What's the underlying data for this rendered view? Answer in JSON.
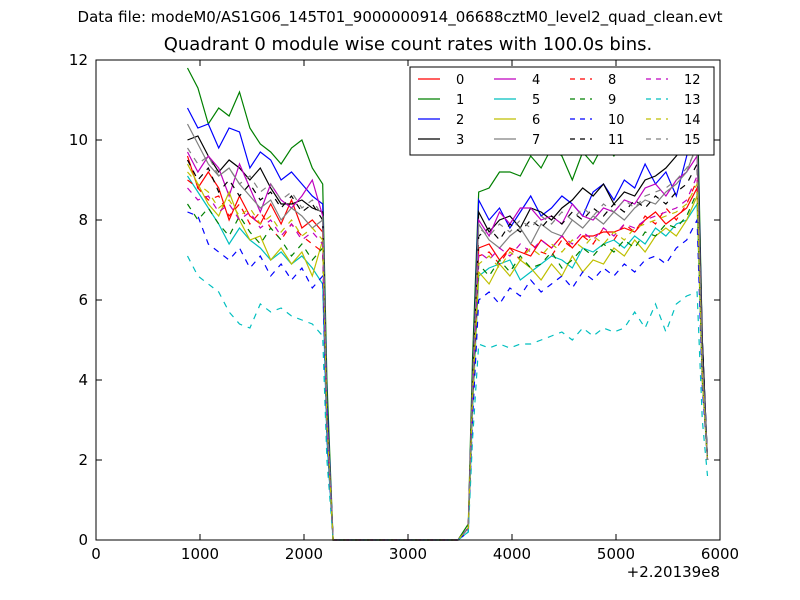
{
  "suptitle": "Data file: modeM0/AS1G06_145T01_9000000914_06688cztM0_level2_quad_clean.evt",
  "chart_data": {
    "type": "line",
    "title": "Quadrant 0 module wise count rates with 100.0s bins.",
    "xlabel": "",
    "ylabel": "",
    "xlim": [
      0,
      6000
    ],
    "ylim": [
      0,
      12
    ],
    "xticks": [
      0,
      1000,
      2000,
      3000,
      4000,
      5000,
      6000
    ],
    "yticks": [
      0,
      2,
      4,
      6,
      8,
      10,
      12
    ],
    "x_offset_label": "+2.20139e8",
    "grid": false,
    "legend_position": "top-right",
    "legend_columns": 4,
    "x": [
      880,
      980,
      1080,
      1180,
      1280,
      1380,
      1480,
      1580,
      1680,
      1780,
      1880,
      1980,
      2080,
      2180,
      2220,
      2280,
      2380,
      2480,
      2580,
      2680,
      2780,
      2880,
      2980,
      3080,
      3180,
      3280,
      3380,
      3480,
      3580,
      3620,
      3680,
      3780,
      3880,
      3980,
      4080,
      4180,
      4280,
      4380,
      4480,
      4580,
      4680,
      4780,
      4880,
      4980,
      5080,
      5180,
      5280,
      5380,
      5480,
      5580,
      5680,
      5780,
      5830,
      5880
    ],
    "series": [
      {
        "name": "0",
        "color": "#ff0000",
        "dash": "solid",
        "values": [
          9.6,
          8.8,
          9.2,
          8.8,
          8.0,
          8.6,
          8.1,
          7.9,
          8.4,
          7.9,
          8.5,
          7.8,
          8.0,
          7.7,
          3.0,
          0.0,
          0.0,
          0.0,
          0.0,
          0.0,
          0.0,
          0.0,
          0.0,
          0.0,
          0.0,
          0.0,
          0.0,
          0.0,
          0.3,
          3.5,
          7.3,
          7.4,
          7.0,
          7.3,
          7.2,
          7.1,
          7.5,
          7.3,
          7.6,
          7.3,
          7.6,
          7.6,
          7.7,
          7.7,
          7.8,
          7.7,
          8.0,
          8.2,
          7.9,
          8.1,
          8.3,
          8.8,
          4.0,
          2.0
        ]
      },
      {
        "name": "1",
        "color": "#008000",
        "dash": "solid",
        "values": [
          11.8,
          11.3,
          10.4,
          10.8,
          10.6,
          11.2,
          10.3,
          9.9,
          9.7,
          9.4,
          9.8,
          10.0,
          9.3,
          8.9,
          4.0,
          0.0,
          0.0,
          0.0,
          0.0,
          0.0,
          0.0,
          0.0,
          0.0,
          0.0,
          0.0,
          0.0,
          0.0,
          0.0,
          0.4,
          4.5,
          8.7,
          8.8,
          9.2,
          9.2,
          9.1,
          9.6,
          9.3,
          9.8,
          9.6,
          9.0,
          9.7,
          9.4,
          9.9,
          9.6,
          10.0,
          9.8,
          10.6,
          10.2,
          10.0,
          10.7,
          11.0,
          11.1,
          5.0,
          2.0
        ]
      },
      {
        "name": "2",
        "color": "#0000ff",
        "dash": "solid",
        "values": [
          10.8,
          10.3,
          10.4,
          9.8,
          10.3,
          10.2,
          9.3,
          9.7,
          9.5,
          9.0,
          9.2,
          8.9,
          8.6,
          8.4,
          3.5,
          0.0,
          0.0,
          0.0,
          0.0,
          0.0,
          0.0,
          0.0,
          0.0,
          0.0,
          0.0,
          0.0,
          0.0,
          0.0,
          0.3,
          4.0,
          8.5,
          8.0,
          8.3,
          7.8,
          8.2,
          8.6,
          8.1,
          8.3,
          8.6,
          8.4,
          8.1,
          8.7,
          8.9,
          8.5,
          9.0,
          8.8,
          9.4,
          8.9,
          9.2,
          8.6,
          9.6,
          10.4,
          5.0,
          2.0
        ]
      },
      {
        "name": "3",
        "color": "#000000",
        "dash": "solid",
        "values": [
          10.0,
          10.1,
          9.6,
          9.2,
          9.5,
          9.3,
          9.0,
          9.3,
          8.8,
          8.4,
          8.4,
          8.5,
          8.3,
          8.2,
          3.2,
          0.0,
          0.0,
          0.0,
          0.0,
          0.0,
          0.0,
          0.0,
          0.0,
          0.0,
          0.0,
          0.0,
          0.0,
          0.0,
          0.3,
          4.0,
          8.2,
          7.7,
          8.0,
          8.1,
          7.8,
          8.3,
          8.2,
          8.0,
          8.3,
          8.5,
          8.8,
          8.6,
          8.9,
          8.4,
          8.7,
          8.6,
          9.0,
          9.1,
          9.3,
          9.6,
          9.9,
          10.3,
          5.0,
          2.0
        ]
      },
      {
        "name": "4",
        "color": "#bf00bf",
        "dash": "solid",
        "values": [
          9.7,
          9.2,
          9.6,
          9.3,
          8.6,
          9.4,
          8.8,
          8.2,
          8.9,
          8.5,
          8.3,
          8.6,
          9.0,
          8.1,
          3.2,
          0.0,
          0.0,
          0.0,
          0.0,
          0.0,
          0.0,
          0.0,
          0.0,
          0.0,
          0.0,
          0.0,
          0.0,
          0.0,
          0.3,
          3.8,
          8.0,
          7.6,
          8.2,
          7.9,
          8.3,
          8.3,
          8.0,
          8.1,
          7.9,
          8.4,
          8.1,
          8.0,
          8.3,
          8.2,
          8.5,
          8.4,
          8.8,
          8.9,
          8.6,
          9.0,
          9.2,
          9.6,
          4.5,
          2.0
        ]
      },
      {
        "name": "5",
        "color": "#00bfbf",
        "dash": "solid",
        "values": [
          9.1,
          8.7,
          8.3,
          7.9,
          7.4,
          7.8,
          7.5,
          7.3,
          7.0,
          7.2,
          6.9,
          7.1,
          6.8,
          6.4,
          2.5,
          0.0,
          0.0,
          0.0,
          0.0,
          0.0,
          0.0,
          0.0,
          0.0,
          0.0,
          0.0,
          0.0,
          0.0,
          0.0,
          0.2,
          3.2,
          6.6,
          6.8,
          6.9,
          7.0,
          6.5,
          6.7,
          6.9,
          7.1,
          7.0,
          6.8,
          7.3,
          7.2,
          7.4,
          7.5,
          7.3,
          7.6,
          7.4,
          7.8,
          7.6,
          7.9,
          8.0,
          8.4,
          4.0,
          2.0
        ]
      },
      {
        "name": "6",
        "color": "#bfbf00",
        "dash": "solid",
        "values": [
          9.4,
          8.9,
          8.4,
          8.1,
          8.7,
          8.0,
          7.5,
          7.6,
          7.0,
          7.3,
          6.9,
          7.2,
          6.6,
          7.5,
          3.0,
          0.0,
          0.0,
          0.0,
          0.0,
          0.0,
          0.0,
          0.0,
          0.0,
          0.0,
          0.0,
          0.0,
          0.0,
          0.0,
          0.3,
          3.4,
          6.7,
          6.4,
          6.9,
          6.6,
          7.0,
          6.8,
          6.5,
          6.9,
          6.6,
          7.1,
          6.7,
          7.0,
          6.9,
          7.3,
          7.1,
          7.5,
          7.2,
          7.6,
          7.8,
          7.6,
          8.0,
          8.6,
          4.0,
          2.0
        ]
      },
      {
        "name": "7",
        "color": "#808080",
        "dash": "solid",
        "values": [
          10.4,
          9.9,
          9.4,
          9.1,
          9.3,
          8.9,
          8.6,
          8.3,
          8.5,
          8.0,
          8.3,
          8.1,
          7.8,
          8.0,
          3.1,
          0.0,
          0.0,
          0.0,
          0.0,
          0.0,
          0.0,
          0.0,
          0.0,
          0.0,
          0.0,
          0.0,
          0.0,
          0.0,
          0.3,
          3.9,
          7.9,
          7.5,
          7.3,
          7.6,
          7.8,
          7.4,
          7.9,
          7.7,
          7.6,
          8.0,
          7.8,
          8.1,
          7.9,
          8.2,
          8.0,
          8.3,
          8.5,
          8.4,
          8.7,
          8.9,
          9.2,
          9.9,
          4.5,
          2.0
        ]
      },
      {
        "name": "8",
        "color": "#ff0000",
        "dash": "dashed",
        "values": [
          9.0,
          8.8,
          8.5,
          8.6,
          8.1,
          8.4,
          7.9,
          8.2,
          7.8,
          7.5,
          7.9,
          7.6,
          7.4,
          7.2,
          2.8,
          0.0,
          0.0,
          0.0,
          0.0,
          0.0,
          0.0,
          0.0,
          0.0,
          0.0,
          0.0,
          0.0,
          0.0,
          0.0,
          0.3,
          3.5,
          7.1,
          7.2,
          6.9,
          7.3,
          7.0,
          7.4,
          7.2,
          7.1,
          7.5,
          7.3,
          7.6,
          7.4,
          7.8,
          7.5,
          7.9,
          7.7,
          8.1,
          7.9,
          8.3,
          8.0,
          8.4,
          9.0,
          4.0,
          2.0
        ]
      },
      {
        "name": "9",
        "color": "#008000",
        "dash": "dashed",
        "values": [
          8.4,
          8.0,
          8.3,
          7.9,
          7.6,
          8.1,
          7.7,
          7.4,
          7.8,
          7.5,
          7.1,
          7.4,
          7.0,
          7.3,
          2.8,
          0.0,
          0.0,
          0.0,
          0.0,
          0.0,
          0.0,
          0.0,
          0.0,
          0.0,
          0.0,
          0.0,
          0.0,
          0.0,
          0.3,
          3.3,
          6.9,
          6.6,
          7.0,
          6.7,
          7.1,
          6.8,
          6.9,
          7.2,
          6.8,
          7.0,
          7.3,
          7.1,
          7.4,
          7.2,
          7.5,
          7.3,
          7.7,
          7.6,
          7.9,
          7.8,
          8.1,
          8.7,
          4.0,
          2.0
        ]
      },
      {
        "name": "10",
        "color": "#0000ff",
        "dash": "dashed",
        "values": [
          8.2,
          8.1,
          7.4,
          7.2,
          7.0,
          7.3,
          6.8,
          7.1,
          6.6,
          6.9,
          6.5,
          6.8,
          6.3,
          6.6,
          2.6,
          0.0,
          0.0,
          0.0,
          0.0,
          0.0,
          0.0,
          0.0,
          0.0,
          0.0,
          0.0,
          0.0,
          0.0,
          0.0,
          0.2,
          3.0,
          6.0,
          6.2,
          5.9,
          6.3,
          6.1,
          6.5,
          6.2,
          6.4,
          6.6,
          6.3,
          6.7,
          6.5,
          6.8,
          6.6,
          6.9,
          6.7,
          7.0,
          7.1,
          6.9,
          7.3,
          7.5,
          8.0,
          3.8,
          2.0
        ]
      },
      {
        "name": "11",
        "color": "#000000",
        "dash": "dashed",
        "values": [
          9.5,
          9.0,
          9.3,
          8.7,
          9.0,
          8.6,
          8.9,
          8.5,
          8.7,
          8.3,
          8.6,
          8.2,
          8.4,
          8.0,
          3.1,
          0.0,
          0.0,
          0.0,
          0.0,
          0.0,
          0.0,
          0.0,
          0.0,
          0.0,
          0.0,
          0.0,
          0.0,
          0.0,
          0.3,
          3.8,
          7.6,
          7.8,
          7.5,
          7.9,
          7.7,
          8.0,
          7.8,
          8.1,
          7.9,
          8.2,
          8.0,
          8.3,
          8.1,
          8.4,
          8.2,
          8.5,
          8.3,
          8.6,
          8.4,
          8.7,
          8.9,
          9.4,
          4.5,
          2.0
        ]
      },
      {
        "name": "12",
        "color": "#bf00bf",
        "dash": "dashed",
        "values": [
          8.8,
          8.5,
          8.6,
          8.2,
          8.4,
          8.0,
          8.2,
          7.8,
          8.0,
          7.6,
          7.9,
          7.5,
          7.7,
          7.4,
          2.9,
          0.0,
          0.0,
          0.0,
          0.0,
          0.0,
          0.0,
          0.0,
          0.0,
          0.0,
          0.0,
          0.0,
          0.0,
          0.0,
          0.3,
          3.6,
          7.2,
          7.0,
          7.3,
          7.1,
          7.4,
          7.2,
          7.5,
          7.3,
          7.6,
          7.4,
          7.7,
          7.5,
          7.8,
          7.6,
          7.9,
          7.8,
          8.0,
          8.1,
          8.2,
          8.3,
          8.5,
          9.1,
          4.2,
          2.0
        ]
      },
      {
        "name": "13",
        "color": "#00bfbf",
        "dash": "dashed",
        "values": [
          7.1,
          6.6,
          6.4,
          6.2,
          5.7,
          5.4,
          5.3,
          5.9,
          5.7,
          5.8,
          5.6,
          5.5,
          5.4,
          5.1,
          2.0,
          0.0,
          0.0,
          0.0,
          0.0,
          0.0,
          0.0,
          0.0,
          0.0,
          0.0,
          0.0,
          0.0,
          0.0,
          0.0,
          0.2,
          2.5,
          4.9,
          4.8,
          4.9,
          4.8,
          4.9,
          4.9,
          5.0,
          5.1,
          5.2,
          5.0,
          5.3,
          5.1,
          5.3,
          5.2,
          5.3,
          5.7,
          5.3,
          5.9,
          5.2,
          5.9,
          6.1,
          6.2,
          3.0,
          1.6
        ]
      },
      {
        "name": "14",
        "color": "#bfbf00",
        "dash": "dashed",
        "values": [
          9.2,
          8.9,
          8.7,
          8.3,
          8.5,
          8.1,
          8.3,
          7.9,
          8.1,
          7.7,
          8.0,
          7.6,
          7.8,
          7.5,
          2.9,
          0.0,
          0.0,
          0.0,
          0.0,
          0.0,
          0.0,
          0.0,
          0.0,
          0.0,
          0.0,
          0.0,
          0.0,
          0.0,
          0.3,
          3.5,
          6.9,
          7.1,
          6.8,
          7.2,
          7.0,
          7.3,
          7.1,
          7.4,
          7.2,
          7.5,
          7.3,
          7.6,
          7.4,
          7.7,
          7.5,
          7.8,
          7.9,
          8.0,
          8.1,
          8.2,
          8.4,
          8.9,
          4.1,
          2.0
        ]
      },
      {
        "name": "15",
        "color": "#808080",
        "dash": "dashed",
        "values": [
          9.8,
          9.4,
          9.6,
          9.1,
          9.3,
          8.9,
          9.1,
          8.7,
          8.9,
          8.5,
          8.7,
          8.3,
          8.5,
          8.1,
          3.1,
          0.0,
          0.0,
          0.0,
          0.0,
          0.0,
          0.0,
          0.0,
          0.0,
          0.0,
          0.0,
          0.0,
          0.0,
          0.0,
          0.3,
          3.8,
          7.8,
          7.6,
          7.9,
          7.7,
          8.0,
          7.8,
          8.1,
          7.9,
          8.2,
          8.0,
          8.3,
          8.1,
          8.4,
          8.2,
          8.5,
          8.3,
          8.6,
          8.7,
          8.8,
          9.0,
          9.3,
          9.8,
          4.6,
          2.0
        ]
      }
    ]
  }
}
